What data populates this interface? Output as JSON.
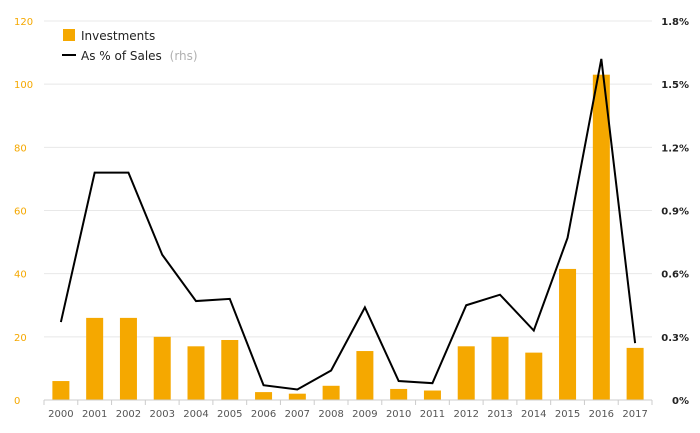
{
  "chart_data": {
    "type": "bar+line",
    "categories": [
      "2000",
      "2001",
      "2002",
      "2003",
      "2004",
      "2005",
      "2006",
      "2007",
      "2008",
      "2009",
      "2010",
      "2011",
      "2012",
      "2013",
      "2014",
      "2015",
      "2016",
      "2017"
    ],
    "series": [
      {
        "name": "Investments",
        "kind": "bar",
        "axis": "left",
        "color": "#f5a800",
        "values": [
          6,
          26,
          26,
          20,
          17,
          19,
          2.5,
          2,
          4.5,
          15.5,
          3.5,
          3,
          17,
          20,
          15,
          41.5,
          103,
          16.5
        ]
      },
      {
        "name": "As % of Sales",
        "name_suffix": "(rhs)",
        "kind": "line",
        "axis": "right",
        "color": "#000000",
        "values": [
          0.37,
          1.08,
          1.08,
          0.69,
          0.47,
          0.48,
          0.07,
          0.05,
          0.14,
          0.44,
          0.09,
          0.08,
          0.45,
          0.5,
          0.33,
          0.77,
          1.62,
          0.27
        ]
      }
    ],
    "left_axis": {
      "ticks": [
        0,
        20,
        40,
        60,
        80,
        100,
        120
      ],
      "min": 0,
      "max": 120,
      "color": "#f5a800"
    },
    "right_axis": {
      "ticks": [
        "0%",
        "0.3%",
        "0.6%",
        "0.9%",
        "1.2%",
        "1.5%",
        "1.8%"
      ],
      "min": 0,
      "max": 1.8
    },
    "grid": true,
    "legend_position": "top-left"
  },
  "legend": {
    "investments": "Investments",
    "sales_pct": "As % of Sales",
    "sales_pct_suffix": "(rhs)"
  }
}
